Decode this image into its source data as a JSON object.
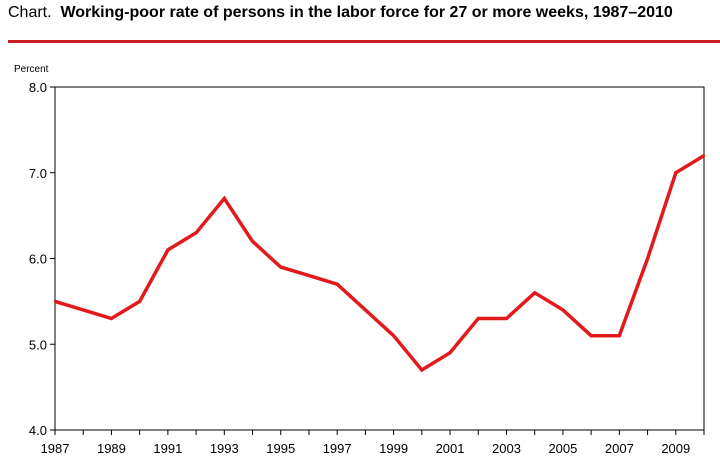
{
  "header": {
    "prefix": "Chart.",
    "title": "Working-poor rate of persons in the labor force for 27 or more weeks, 1987–2010",
    "rule_color": "#cc1f1f"
  },
  "chart_data": {
    "type": "line",
    "title": "Working-poor rate of persons in the labor force for 27 or more weeks, 1987–2010",
    "ylabel": "Percent",
    "xlabel": "",
    "xlim": [
      1987,
      2010
    ],
    "ylim": [
      4.0,
      8.0
    ],
    "grid": false,
    "legend": "none",
    "x_ticks": [
      "1987",
      "1989",
      "1991",
      "1993",
      "1995",
      "1997",
      "1999",
      "2001",
      "2003",
      "2005",
      "2007",
      "2009"
    ],
    "y_ticks": [
      "4.0",
      "5.0",
      "6.0",
      "7.0",
      "8.0"
    ],
    "series": [
      {
        "color": "#e31a1c",
        "x": [
          1987,
          1988,
          1989,
          1990,
          1991,
          1992,
          1993,
          1994,
          1995,
          1996,
          1997,
          1998,
          1999,
          2000,
          2001,
          2002,
          2003,
          2004,
          2005,
          2006,
          2007,
          2008,
          2009,
          2010
        ],
        "values": [
          5.5,
          5.4,
          5.3,
          5.5,
          6.1,
          6.3,
          6.7,
          6.2,
          5.9,
          5.8,
          5.7,
          5.4,
          5.1,
          4.7,
          4.9,
          5.3,
          5.3,
          5.6,
          5.4,
          5.1,
          5.1,
          6.0,
          7.0,
          7.2
        ]
      }
    ]
  }
}
